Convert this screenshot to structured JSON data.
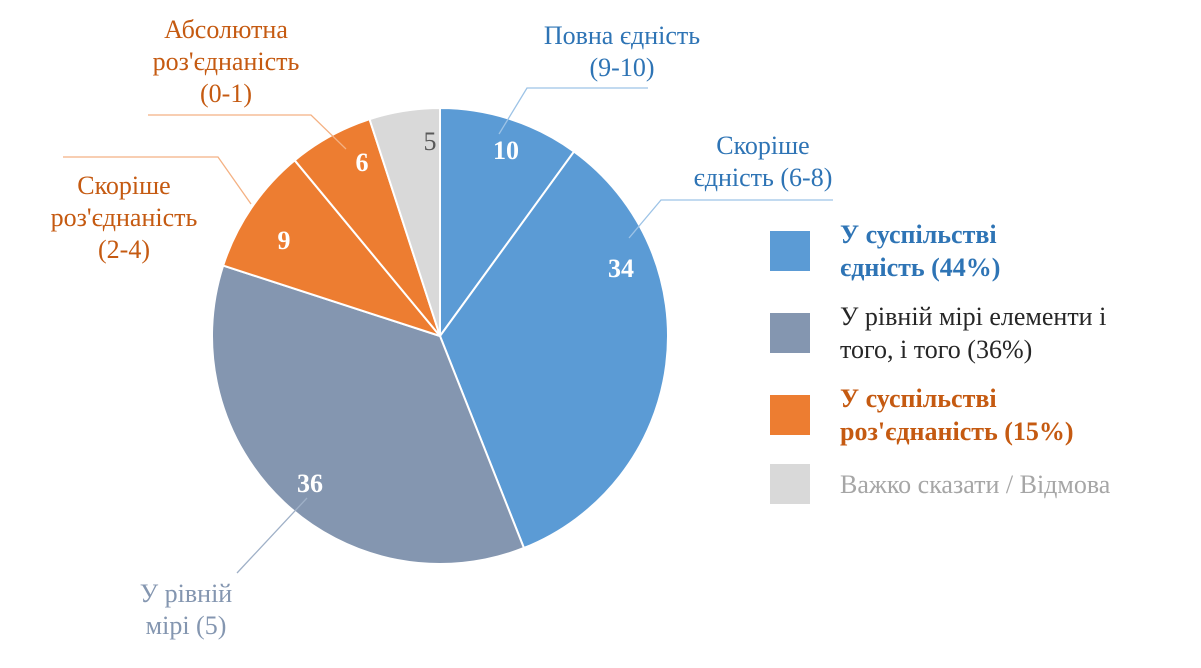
{
  "chart_data": {
    "type": "pie",
    "title": "",
    "start_angle_deg": 0,
    "direction": "clockwise",
    "legend_position": "right",
    "slices": [
      {
        "label": "Повна єдність (9-10)",
        "value": 10,
        "value_label": "10",
        "color": "#5B9BD5",
        "value_label_color": "#FFFFFF"
      },
      {
        "label": "Скоріше єдність (6-8)",
        "value": 34,
        "value_label": "34",
        "color": "#5B9BD5",
        "value_label_color": "#FFFFFF"
      },
      {
        "label": "У рівній мірі (5)",
        "value": 36,
        "value_label": "36",
        "color": "#8496B0",
        "value_label_color": "#FFFFFF"
      },
      {
        "label": "Скоріше роз'єднаність (2-4)",
        "value": 9,
        "value_label": "9",
        "color": "#ED7D31",
        "value_label_color": "#FFFFFF"
      },
      {
        "label": "Абсолютна роз'єднаність (0-1)",
        "value": 6,
        "value_label": "6",
        "color": "#ED7D31",
        "value_label_color": "#FFFFFF"
      },
      {
        "label": "Важко сказати / Відмова",
        "value": 5,
        "value_label": "5",
        "color": "#D9D9D9",
        "value_label_color": "#595959"
      }
    ],
    "legend_entries": [
      "У суспільстві єдність (44%)",
      "У рівній мірі елементи і того, і того (36%)",
      "У суспільстві роз'єднаність (15%)",
      "Важко сказати / Відмова"
    ]
  },
  "callouts": [
    {
      "text": "Повна єдність\n(9-10)",
      "color": "#2E74B5"
    },
    {
      "text": "Скоріше\nєдність (6-8)",
      "color": "#2E74B5"
    },
    {
      "text": "Абсолютна\nроз'єднаність\n(0-1)",
      "color": "#C55A11"
    },
    {
      "text": "Скоріше\nроз'єднаність\n(2-4)",
      "color": "#C55A11"
    },
    {
      "text": "У рівній\nмірі (5)",
      "color": "#8496B0"
    }
  ],
  "legend": {
    "items": [
      {
        "label": "У суспільстві\nєдність (44%)",
        "color": "#5B9BD5",
        "text_color": "#2E74B5",
        "bold": true
      },
      {
        "label": "У рівній мірі елементи і\nтого, і того (36%)",
        "color": "#8496B0",
        "text_color": "#262626",
        "bold": false
      },
      {
        "label": "У суспільстві\nроз'єднаність (15%)",
        "color": "#ED7D31",
        "text_color": "#C55A11",
        "bold": true
      },
      {
        "label": "Важко сказати / Відмова",
        "color": "#D9D9D9",
        "text_color": "#A6A6A6",
        "bold": false
      }
    ]
  }
}
